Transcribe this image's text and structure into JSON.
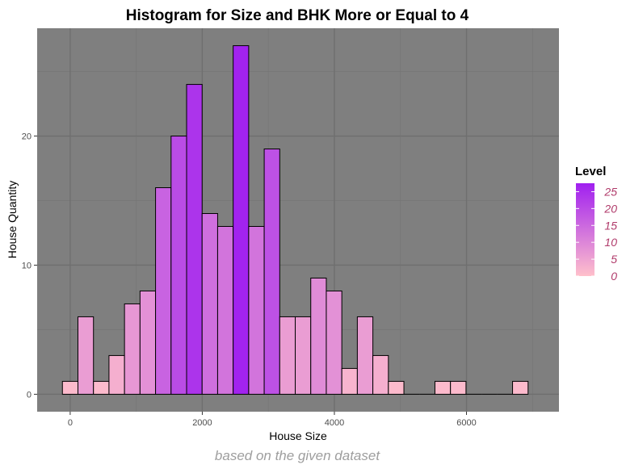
{
  "chart_data": {
    "type": "bar",
    "title": "Histogram for Size and BHK More or Equal to 4",
    "xlabel": "House Size",
    "ylabel": "House Quantity",
    "caption": "based on the given dataset",
    "bin_width": 235,
    "bins": [
      {
        "x": 0,
        "count": 1
      },
      {
        "x": 235,
        "count": 6
      },
      {
        "x": 470,
        "count": 1
      },
      {
        "x": 705,
        "count": 3
      },
      {
        "x": 940,
        "count": 7
      },
      {
        "x": 1175,
        "count": 8
      },
      {
        "x": 1410,
        "count": 16
      },
      {
        "x": 1645,
        "count": 20
      },
      {
        "x": 1880,
        "count": 24
      },
      {
        "x": 2115,
        "count": 14
      },
      {
        "x": 2350,
        "count": 13
      },
      {
        "x": 2585,
        "count": 27
      },
      {
        "x": 2820,
        "count": 13
      },
      {
        "x": 3055,
        "count": 19
      },
      {
        "x": 3290,
        "count": 6
      },
      {
        "x": 3525,
        "count": 6
      },
      {
        "x": 3760,
        "count": 9
      },
      {
        "x": 3995,
        "count": 8
      },
      {
        "x": 4230,
        "count": 2
      },
      {
        "x": 4465,
        "count": 6
      },
      {
        "x": 4700,
        "count": 3
      },
      {
        "x": 4935,
        "count": 1
      },
      {
        "x": 5170,
        "count": 0
      },
      {
        "x": 5405,
        "count": 0
      },
      {
        "x": 5640,
        "count": 1
      },
      {
        "x": 5875,
        "count": 1
      },
      {
        "x": 6110,
        "count": 0
      },
      {
        "x": 6345,
        "count": 0
      },
      {
        "x": 6580,
        "count": 0
      },
      {
        "x": 6815,
        "count": 1
      }
    ],
    "xlim": [
      -500,
      7400
    ],
    "ylim": [
      -1.35,
      28.35
    ],
    "x_ticks": [
      0,
      2000,
      4000,
      6000
    ],
    "x_minor_ticks": [
      1000,
      3000,
      5000,
      7000
    ],
    "y_ticks": [
      0,
      10,
      20
    ],
    "y_minor_ticks": [
      5,
      15,
      25
    ],
    "grid": true,
    "legend": {
      "title": "Level",
      "placement": "right",
      "labels": [
        "25",
        "20",
        "15",
        "10",
        "5",
        "0"
      ],
      "values": [
        25,
        20,
        15,
        10,
        5,
        0
      ],
      "range": [
        0,
        27.5
      ],
      "low_color": "#ffc0cb",
      "high_color": "#a020f0"
    },
    "colors": {
      "panel": "#7f7f7f",
      "grid_major": "#6f6f6f",
      "grid_minor": "#767676",
      "bar_outline": "#000000"
    }
  }
}
